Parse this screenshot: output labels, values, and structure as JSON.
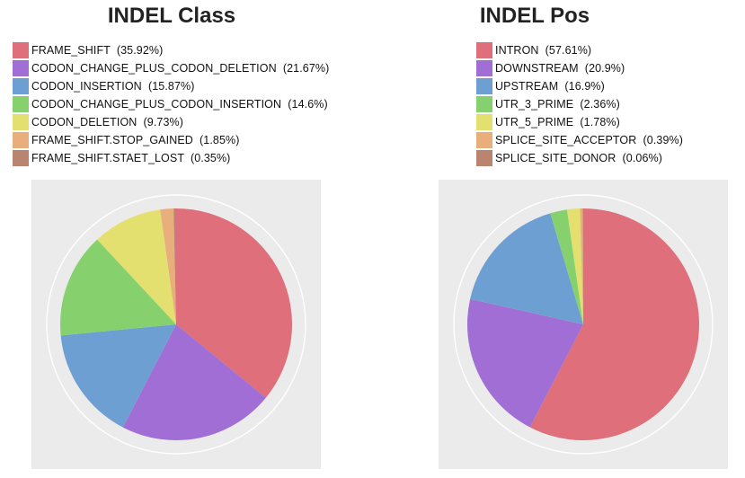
{
  "chart_data": [
    {
      "type": "pie",
      "title": "INDEL Class",
      "legend_position": "top",
      "slices": [
        {
          "label": "FRAME_SHIFT",
          "pct_label": "(35.92%)",
          "value": 35.92,
          "color": "#de6f7b"
        },
        {
          "label": "CODON_CHANGE_PLUS_CODON_DELETION",
          "pct_label": "(21.67%)",
          "value": 21.67,
          "color": "#a06ed4"
        },
        {
          "label": "CODON_INSERTION",
          "pct_label": "(15.87%)",
          "value": 15.87,
          "color": "#6e9fd2"
        },
        {
          "label": "CODON_CHANGE_PLUS_CODON_INSERTION",
          "pct_label": "(14.6%)",
          "value": 14.6,
          "color": "#86d16e"
        },
        {
          "label": "CODON_DELETION",
          "pct_label": "(9.73%)",
          "value": 9.73,
          "color": "#e3e070"
        },
        {
          "label": "FRAME_SHIFT.STOP_GAINED",
          "pct_label": "(1.85%)",
          "value": 1.85,
          "color": "#e8ae7c"
        },
        {
          "label": "FRAME_SHIFT.STAET_LOST",
          "pct_label": "(0.35%)",
          "value": 0.35,
          "color": "#b98470"
        }
      ]
    },
    {
      "type": "pie",
      "title": "INDEL Pos",
      "legend_position": "top",
      "slices": [
        {
          "label": "INTRON",
          "pct_label": "(57.61%)",
          "value": 57.61,
          "color": "#de6f7b"
        },
        {
          "label": "DOWNSTREAM",
          "pct_label": "(20.9%)",
          "value": 20.9,
          "color": "#a06ed4"
        },
        {
          "label": "UPSTREAM",
          "pct_label": "(16.9%)",
          "value": 16.9,
          "color": "#6e9fd2"
        },
        {
          "label": "UTR_3_PRIME",
          "pct_label": "(2.36%)",
          "value": 2.36,
          "color": "#86d16e"
        },
        {
          "label": "UTR_5_PRIME",
          "pct_label": "(1.78%)",
          "value": 1.78,
          "color": "#e3e070"
        },
        {
          "label": "SPLICE_SITE_ACCEPTOR",
          "pct_label": "(0.39%)",
          "value": 0.39,
          "color": "#e8ae7c"
        },
        {
          "label": "SPLICE_SITE_DONOR",
          "pct_label": "(0.06%)",
          "value": 0.06,
          "color": "#b98470"
        }
      ]
    }
  ]
}
